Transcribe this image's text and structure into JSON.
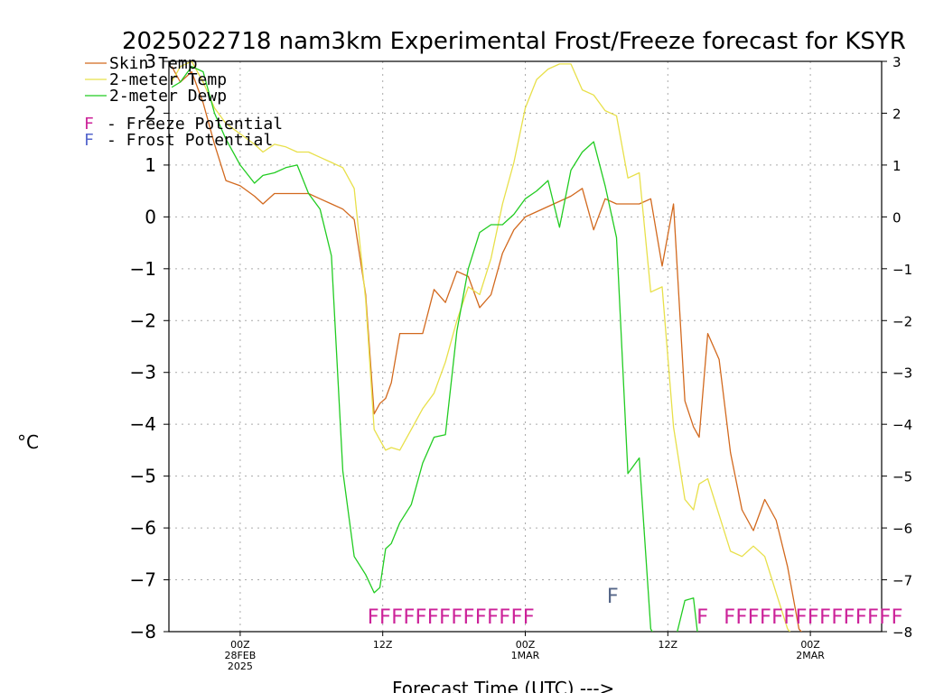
{
  "chart_data": {
    "type": "line",
    "title": "2025022718 nam3km Experimental Frost/Freeze forecast for KSYR",
    "ylabel": "°C",
    "xlabel": "Forecast Time (UTC) --->",
    "ylim": [
      -8,
      3
    ],
    "xlim": [
      -5,
      45
    ],
    "grid": true,
    "yticks": [
      3,
      2,
      1,
      0,
      -1,
      -2,
      -3,
      -4,
      -5,
      -6,
      -7,
      -8
    ],
    "ytick_labels": [
      "3",
      "2",
      "1",
      "0",
      "−1",
      "−2",
      "−3",
      "−4",
      "−5",
      "−6",
      "−7",
      "−8"
    ],
    "xticks": [
      {
        "x": 0,
        "lines": [
          "00Z",
          "28FEB",
          "2025"
        ]
      },
      {
        "x": 10,
        "lines": [
          "12Z"
        ]
      },
      {
        "x": 20,
        "lines": [
          "00Z",
          "1MAR"
        ]
      },
      {
        "x": 30,
        "lines": [
          "12Z"
        ]
      },
      {
        "x": 40,
        "lines": [
          "00Z",
          "2MAR"
        ]
      }
    ],
    "legend": {
      "position": "top-left",
      "entries": [
        {
          "name": "Skin Temp",
          "color": "#d2691e"
        },
        {
          "name": "2-meter Temp",
          "color": "#e8e04a"
        },
        {
          "name": "2-meter Dewp",
          "color": "#22cc22"
        }
      ],
      "potential": [
        {
          "letter": "F",
          "text": "- Freeze Potential",
          "color": "#cc2299"
        },
        {
          "letter": "F",
          "text": "- Frost Potential",
          "color": "#5566cc"
        }
      ]
    },
    "series": [
      {
        "name": "Skin Temp",
        "color": "#d2691e",
        "x": [
          -4.8,
          -4.2,
          -3.4,
          -2.6,
          -1.8,
          -1.0,
          0.0,
          1.0,
          1.6,
          2.4,
          3.2,
          4.0,
          4.8,
          5.6,
          6.4,
          7.2,
          8.0,
          8.8,
          9.4,
          9.8,
          10.2,
          10.6,
          11.2,
          12.0,
          12.8,
          13.6,
          14.4,
          15.2,
          16.0,
          16.8,
          17.6,
          18.4,
          19.2,
          20.0,
          20.8,
          21.6,
          22.4,
          23.2,
          24.0,
          24.8,
          25.6,
          26.4,
          27.2,
          28.0,
          28.8,
          29.6,
          30.4,
          31.2,
          31.8,
          32.2,
          32.8,
          33.6,
          34.4,
          35.2,
          36.0,
          36.8,
          37.6,
          38.4,
          39.2,
          40.0,
          40.8,
          41.4,
          42.2
        ],
        "values": [
          2.9,
          2.6,
          2.8,
          2.2,
          1.4,
          0.7,
          0.6,
          0.4,
          0.25,
          0.45,
          0.45,
          0.45,
          0.45,
          0.35,
          0.25,
          0.15,
          -0.05,
          -1.5,
          -3.8,
          -3.6,
          -3.5,
          -3.2,
          -2.25,
          -2.25,
          -2.25,
          -1.4,
          -1.65,
          -1.05,
          -1.15,
          -1.75,
          -1.5,
          -0.7,
          -0.25,
          0.0,
          0.1,
          0.2,
          0.3,
          0.4,
          0.55,
          -0.25,
          0.35,
          0.25,
          0.25,
          0.25,
          0.35,
          -0.95,
          0.25,
          -3.55,
          -4.05,
          -4.25,
          -2.25,
          -2.75,
          -4.55,
          -5.65,
          -6.05,
          -5.45,
          -5.85,
          -6.75,
          -7.95,
          -8.2,
          -8.3,
          -8.3,
          -8.3
        ]
      },
      {
        "name": "2-meter Temp",
        "color": "#e8e04a",
        "x": [
          -4.8,
          -4.2,
          -3.4,
          -2.6,
          -1.8,
          -1.0,
          0.0,
          1.0,
          1.6,
          2.4,
          3.2,
          4.0,
          4.8,
          5.6,
          6.4,
          7.2,
          8.0,
          8.8,
          9.4,
          9.8,
          10.2,
          10.6,
          11.2,
          12.0,
          12.8,
          13.6,
          14.4,
          15.2,
          16.0,
          16.8,
          17.6,
          18.4,
          19.2,
          20.0,
          20.8,
          21.6,
          22.4,
          23.2,
          24.0,
          24.8,
          25.6,
          26.4,
          27.2,
          28.0,
          28.8,
          29.6,
          30.4,
          31.2,
          31.8,
          32.2,
          32.8,
          33.6,
          34.4,
          35.2,
          36.0,
          36.8,
          37.6,
          38.4,
          39.2,
          40.0,
          40.8,
          41.4,
          42.2
        ],
        "values": [
          2.6,
          2.9,
          3.0,
          2.6,
          2.1,
          1.8,
          1.6,
          1.4,
          1.25,
          1.4,
          1.35,
          1.25,
          1.25,
          1.15,
          1.05,
          0.95,
          0.55,
          -1.6,
          -4.1,
          -4.3,
          -4.5,
          -4.45,
          -4.5,
          -4.1,
          -3.7,
          -3.4,
          -2.8,
          -2.0,
          -1.35,
          -1.5,
          -0.8,
          0.25,
          1.05,
          2.1,
          2.65,
          2.85,
          2.95,
          2.95,
          2.45,
          2.35,
          2.05,
          1.95,
          0.75,
          0.85,
          -1.45,
          -1.35,
          -4.05,
          -5.45,
          -5.65,
          -5.15,
          -5.05,
          -5.75,
          -6.45,
          -6.55,
          -6.35,
          -6.55,
          -7.25,
          -7.95,
          -8.2,
          -8.3,
          -8.3,
          -8.3,
          -8.3
        ]
      },
      {
        "name": "2-meter Dewp",
        "color": "#22cc22",
        "x": [
          -4.8,
          -4.2,
          -3.4,
          -2.6,
          -1.8,
          -1.0,
          0.0,
          1.0,
          1.6,
          2.4,
          3.2,
          4.0,
          4.8,
          5.6,
          6.4,
          7.2,
          8.0,
          8.8,
          9.4,
          9.8,
          10.2,
          10.6,
          11.2,
          12.0,
          12.8,
          13.6,
          14.4,
          15.2,
          16.0,
          16.8,
          17.6,
          18.4,
          19.2,
          20.0,
          20.8,
          21.6,
          22.4,
          23.2,
          24.0,
          24.8,
          25.6,
          26.4,
          27.2,
          28.0,
          28.8,
          29.6,
          30.4,
          31.2,
          31.8,
          32.2,
          32.8,
          33.6,
          34.4,
          35.2,
          36.0,
          36.8,
          37.6,
          38.4,
          39.2,
          40.0,
          40.8,
          41.4,
          42.2
        ],
        "values": [
          2.5,
          2.6,
          2.9,
          2.8,
          2.0,
          1.5,
          1.0,
          0.65,
          0.8,
          0.85,
          0.95,
          1.0,
          0.45,
          0.15,
          -0.75,
          -4.9,
          -6.55,
          -6.9,
          -7.25,
          -7.15,
          -6.4,
          -6.3,
          -5.9,
          -5.55,
          -4.75,
          -4.25,
          -4.2,
          -2.2,
          -1.0,
          -0.3,
          -0.15,
          -0.15,
          0.05,
          0.35,
          0.5,
          0.7,
          -0.2,
          0.9,
          1.25,
          1.45,
          0.6,
          -0.4,
          -4.95,
          -4.65,
          -7.95,
          -8.3,
          -8.3,
          -7.4,
          -7.35,
          -8.3,
          -8.3,
          -8.3,
          -8.3,
          -8.3,
          -8.3,
          -8.3,
          -8.3,
          -8.3,
          -8.3,
          -8.3,
          -8.3,
          -8.3,
          -8.3
        ]
      }
    ],
    "annotations": [
      {
        "text": "FFFFFFFFFFFFFF",
        "x": 8.9,
        "y": -7.7,
        "color": "#cc2299"
      },
      {
        "text": "F",
        "x": 25.7,
        "y": -7.3,
        "color": "#556688"
      },
      {
        "text": "F",
        "x": 32.0,
        "y": -7.7,
        "color": "#cc2299"
      },
      {
        "text": "FFFFFFFFFFFFFFF",
        "x": 33.9,
        "y": -7.7,
        "color": "#cc2299"
      }
    ]
  }
}
